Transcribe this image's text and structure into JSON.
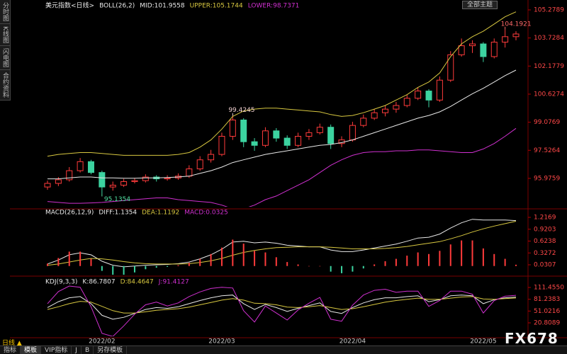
{
  "ui": {
    "sidebar": [
      "分时图",
      "K线图",
      "闪电图",
      "合约资料"
    ],
    "theme_button": "全部主题",
    "period": "日线 ▲",
    "tabs": [
      "指标",
      "模板",
      "VIP指标",
      "J",
      "B",
      "另存模板"
    ],
    "watermark": "FX678"
  },
  "chart_data": [
    {
      "type": "candlestick",
      "title": "美元指数<日线>",
      "indicator": "BOLL(26,2)",
      "ylim": [
        94.41,
        105.63
      ],
      "yticks": [
        105.2789,
        103.7284,
        102.1779,
        100.6274,
        99.0769,
        97.5264,
        95.9759
      ],
      "grid": false,
      "series": [
        {
          "type": "candlestick",
          "up_color": "#ff3b3b",
          "down_color": "#3cd3a0",
          "open": [
            95.5,
            95.7,
            95.9,
            96.4,
            96.9,
            96.3,
            95.5,
            95.6,
            95.8,
            95.85,
            96.05,
            95.95,
            96.0,
            96.1,
            96.5,
            97.0,
            97.3,
            98.3,
            99.2,
            98.0,
            97.8,
            98.6,
            98.2,
            97.8,
            98.3,
            98.5,
            98.8,
            97.9,
            98.1,
            98.9,
            99.3,
            99.6,
            99.8,
            100.0,
            100.4,
            100.8,
            100.3,
            101.4,
            102.8,
            103.3,
            103.4,
            102.7,
            103.5,
            103.8
          ],
          "high": [
            95.85,
            96.05,
            96.6,
            97.1,
            97.0,
            96.4,
            95.8,
            95.95,
            96.0,
            96.2,
            96.15,
            96.15,
            96.25,
            96.7,
            97.2,
            97.55,
            98.5,
            99.4245,
            99.3,
            98.2,
            98.8,
            98.75,
            98.35,
            98.5,
            98.7,
            99.0,
            98.95,
            98.3,
            99.1,
            99.5,
            99.8,
            100.0,
            100.2,
            100.6,
            101.0,
            100.9,
            101.6,
            103.0,
            103.7,
            103.6,
            103.5,
            103.7,
            104.1921,
            104.1
          ],
          "low": [
            95.35,
            95.55,
            95.8,
            96.3,
            96.2,
            95.1354,
            95.3,
            95.5,
            95.7,
            95.75,
            95.8,
            95.85,
            95.9,
            96.0,
            96.4,
            96.85,
            97.2,
            98.1,
            97.7,
            97.5,
            97.7,
            98.0,
            97.6,
            97.7,
            98.1,
            98.4,
            97.6,
            97.7,
            98.0,
            98.8,
            99.2,
            99.4,
            99.6,
            99.9,
            100.3,
            99.9,
            100.2,
            101.3,
            102.7,
            102.9,
            102.4,
            102.6,
            103.2,
            103.6
          ],
          "close": [
            95.7,
            95.9,
            96.4,
            96.9,
            96.3,
            95.5,
            95.6,
            95.8,
            95.85,
            96.05,
            95.95,
            96.0,
            96.1,
            96.5,
            97.0,
            97.3,
            98.3,
            99.2,
            98.0,
            97.8,
            98.6,
            98.2,
            97.8,
            98.3,
            98.5,
            98.8,
            97.9,
            98.1,
            98.9,
            99.3,
            99.6,
            99.8,
            100.0,
            100.4,
            100.8,
            100.3,
            101.4,
            102.8,
            103.3,
            103.4,
            102.7,
            103.5,
            103.8,
            103.95
          ]
        },
        {
          "type": "line",
          "name": "MID:101.9558",
          "color": "#e8e8e8",
          "values": [
            95.95,
            95.95,
            96.0,
            96.05,
            96.05,
            96.0,
            96.0,
            95.98,
            95.98,
            96.0,
            96.0,
            96.02,
            96.05,
            96.1,
            96.25,
            96.4,
            96.6,
            96.85,
            97.0,
            97.15,
            97.3,
            97.4,
            97.5,
            97.6,
            97.7,
            97.8,
            97.85,
            97.95,
            98.1,
            98.3,
            98.5,
            98.7,
            98.9,
            99.1,
            99.3,
            99.45,
            99.65,
            99.95,
            100.3,
            100.65,
            100.95,
            101.3,
            101.65,
            101.9558
          ]
        },
        {
          "type": "line",
          "name": "UPPER:105.1744",
          "color": "#d8c840",
          "values": [
            97.2,
            97.3,
            97.35,
            97.4,
            97.4,
            97.35,
            97.3,
            97.25,
            97.25,
            97.25,
            97.25,
            97.25,
            97.3,
            97.4,
            97.7,
            98.1,
            98.7,
            99.4,
            99.7,
            99.8,
            99.85,
            99.85,
            99.8,
            99.75,
            99.7,
            99.65,
            99.5,
            99.4,
            99.45,
            99.6,
            99.8,
            100.0,
            100.3,
            100.6,
            101.0,
            101.3,
            101.8,
            102.7,
            103.4,
            103.8,
            104.1,
            104.5,
            104.9,
            105.1744
          ]
        },
        {
          "type": "line",
          "name": "LOWER:98.7371",
          "color": "#d030d0",
          "values": [
            94.7,
            94.65,
            94.6,
            94.6,
            94.62,
            94.65,
            94.7,
            94.75,
            94.8,
            94.85,
            94.9,
            94.9,
            94.8,
            94.75,
            94.7,
            94.65,
            94.5,
            94.3,
            94.3,
            94.5,
            94.8,
            95.0,
            95.3,
            95.6,
            95.9,
            96.3,
            96.7,
            97.0,
            97.25,
            97.4,
            97.45,
            97.45,
            97.5,
            97.5,
            97.55,
            97.55,
            97.5,
            97.45,
            97.4,
            97.4,
            97.6,
            97.9,
            98.3,
            98.7371
          ]
        }
      ],
      "annotations": [
        {
          "label": "104.1921",
          "value": 104.1921,
          "index": 42,
          "color": "#ff6a6a"
        },
        {
          "label": "99.4245",
          "value": 99.4245,
          "index": 17,
          "color": "#f0d0d0"
        },
        {
          "label": "95.1354",
          "value": 95.1354,
          "index": 5,
          "color": "#50e0a0"
        }
      ]
    },
    {
      "type": "combo",
      "indicator": "MACD(26,12,9)",
      "ylim": [
        -0.217,
        1.394
      ],
      "yticks": [
        1.2169,
        0.9203,
        0.6238,
        0.3272,
        0.0307
      ],
      "grid": false,
      "series": [
        {
          "type": "line",
          "name": "DIFF:1.1354",
          "color": "#e8e8e8",
          "values": [
            0.05,
            0.15,
            0.28,
            0.33,
            0.28,
            0.12,
            0.02,
            -0.02,
            0,
            0.02,
            0.03,
            0.04,
            0.06,
            0.1,
            0.18,
            0.28,
            0.42,
            0.6,
            0.62,
            0.58,
            0.6,
            0.57,
            0.52,
            0.5,
            0.48,
            0.48,
            0.4,
            0.36,
            0.36,
            0.4,
            0.45,
            0.5,
            0.55,
            0.62,
            0.7,
            0.72,
            0.8,
            0.95,
            1.08,
            1.17,
            1.15,
            1.15,
            1.15,
            1.1354
          ]
        },
        {
          "type": "line",
          "name": "DEA:1.1192",
          "color": "#d8c840",
          "values": [
            0.02,
            0.05,
            0.1,
            0.15,
            0.19,
            0.18,
            0.15,
            0.11,
            0.08,
            0.06,
            0.05,
            0.05,
            0.05,
            0.06,
            0.09,
            0.13,
            0.19,
            0.27,
            0.34,
            0.39,
            0.43,
            0.46,
            0.47,
            0.48,
            0.48,
            0.48,
            0.47,
            0.45,
            0.43,
            0.43,
            0.43,
            0.44,
            0.46,
            0.49,
            0.53,
            0.57,
            0.61,
            0.68,
            0.76,
            0.85,
            0.93,
            1.0,
            1.06,
            1.1192
          ]
        },
        {
          "type": "bar",
          "name": "MACD:0.0325",
          "color": "#d030d0",
          "up_color": "#ff3b3b",
          "down_color": "#3cd3a0",
          "values": [
            0.06,
            0.2,
            0.36,
            0.36,
            0.18,
            -0.12,
            -0.26,
            -0.26,
            -0.16,
            -0.08,
            -0.04,
            -0.02,
            0.02,
            0.08,
            0.18,
            0.3,
            0.46,
            0.66,
            0.56,
            0.38,
            0.34,
            0.22,
            0.1,
            0.04,
            0,
            0,
            -0.14,
            -0.18,
            -0.14,
            -0.06,
            0.04,
            0.12,
            0.18,
            0.26,
            0.34,
            0.3,
            0.38,
            0.54,
            0.64,
            0.64,
            0.44,
            0.3,
            0.18,
            0.0325
          ]
        }
      ]
    },
    {
      "type": "line",
      "indicator": "KDJ(9,3,3)",
      "ylim": [
        -13.64,
        135.02
      ],
      "yticks": [
        {
          "value": 111.455,
          "label": "111.4550"
        },
        81.2383,
        51.0216,
        20.8089
      ],
      "grid": false,
      "categories": [
        null,
        null,
        null,
        null,
        null,
        "2022/02",
        null,
        null,
        null,
        null,
        null,
        null,
        null,
        null,
        null,
        null,
        "2022/03",
        null,
        null,
        null,
        null,
        null,
        null,
        null,
        null,
        null,
        null,
        null,
        "2022/04",
        null,
        null,
        null,
        null,
        null,
        null,
        null,
        null,
        null,
        null,
        null,
        "2022/05",
        null,
        null,
        null
      ],
      "series": [
        {
          "type": "line",
          "name": "K:86.7807",
          "color": "#e8e8e8",
          "values": [
            60,
            75,
            85,
            88,
            70,
            40,
            30,
            35,
            45,
            55,
            60,
            58,
            62,
            70,
            78,
            85,
            90,
            92,
            70,
            55,
            68,
            60,
            50,
            58,
            65,
            72,
            50,
            45,
            60,
            72,
            80,
            85,
            85,
            88,
            90,
            75,
            80,
            90,
            92,
            90,
            70,
            80,
            85,
            86.7807
          ]
        },
        {
          "type": "line",
          "name": "D:84.4647",
          "color": "#d8c840",
          "values": [
            55,
            62,
            70,
            76,
            74,
            63,
            52,
            46,
            46,
            49,
            53,
            55,
            57,
            61,
            67,
            73,
            79,
            83,
            79,
            71,
            70,
            67,
            61,
            60,
            62,
            65,
            60,
            55,
            57,
            62,
            68,
            74,
            78,
            81,
            84,
            81,
            81,
            84,
            87,
            88,
            82,
            81,
            83,
            84.4647
          ]
        },
        {
          "type": "line",
          "name": "J:91.4127",
          "color": "#d030d0",
          "values": [
            70,
            101,
            115,
            112,
            62,
            -6,
            -14,
            13,
            43,
            67,
            74,
            64,
            72,
            88,
            100,
            109,
            112,
            110,
            52,
            23,
            64,
            46,
            28,
            54,
            71,
            86,
            30,
            25,
            66,
            92,
            104,
            107,
            99,
            102,
            102,
            63,
            78,
            102,
            102,
            94,
            46,
            78,
            89,
            91.4127
          ]
        }
      ]
    }
  ]
}
